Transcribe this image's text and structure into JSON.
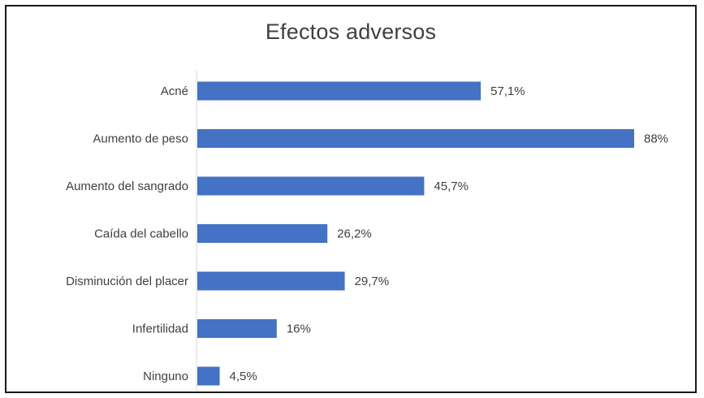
{
  "chart_data": {
    "type": "bar",
    "orientation": "horizontal",
    "title": "Efectos adversos",
    "categories": [
      "Acné",
      "Aumento de peso",
      "Aumento del sangrado",
      "Caída del cabello",
      "Disminución del placer",
      "Infertilidad",
      "Ninguno"
    ],
    "values": [
      57.1,
      88,
      45.7,
      26.2,
      29.7,
      16,
      4.5
    ],
    "value_labels": [
      "57,1%",
      "88%",
      "45,7%",
      "26,2%",
      "29,7%",
      "16%",
      "4,5%"
    ],
    "xlim": [
      0,
      88
    ],
    "grid": false,
    "legend": "none",
    "bar_color": "#4472c4"
  }
}
